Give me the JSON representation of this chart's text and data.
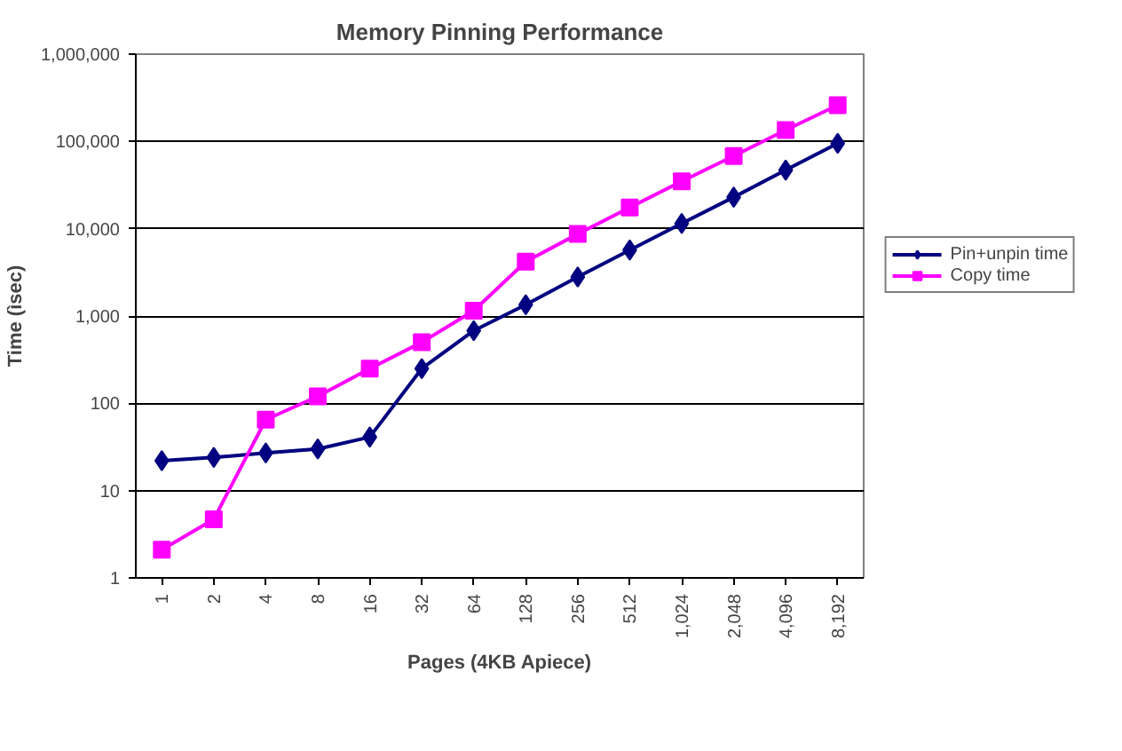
{
  "chart_data": {
    "type": "line",
    "title": "Memory Pinning Performance",
    "xlabel": "Pages (4KB Apiece)",
    "ylabel": "Time (ìsec)",
    "categories": [
      "1",
      "2",
      "4",
      "8",
      "16",
      "32",
      "64",
      "128",
      "256",
      "512",
      "1,024",
      "2,048",
      "4,096",
      "8,192"
    ],
    "series": [
      {
        "name": "Pin+unpin time",
        "color": "#000080",
        "marker": "diamond",
        "values": [
          22,
          24,
          27,
          30,
          41,
          250,
          680,
          1350,
          2800,
          5700,
          11500,
          23000,
          47000,
          95000
        ]
      },
      {
        "name": "Copy time",
        "color": "#ff00ff",
        "marker": "square",
        "values": [
          2.1,
          4.7,
          65,
          120,
          250,
          500,
          1150,
          4200,
          8700,
          17500,
          35000,
          68000,
          135000,
          260000
        ]
      }
    ],
    "log": "y",
    "ylim": [
      1,
      1000000
    ],
    "yticks": [
      1,
      10,
      100,
      {
        "value": 1000,
        "label": "1,000"
      },
      {
        "value": 10000,
        "label": "10,000"
      },
      {
        "value": 100000,
        "label": "100,000"
      },
      {
        "value": 1000000,
        "label": "1,000,000"
      }
    ],
    "grid": "y",
    "legend": "right",
    "line_style": "solid"
  }
}
